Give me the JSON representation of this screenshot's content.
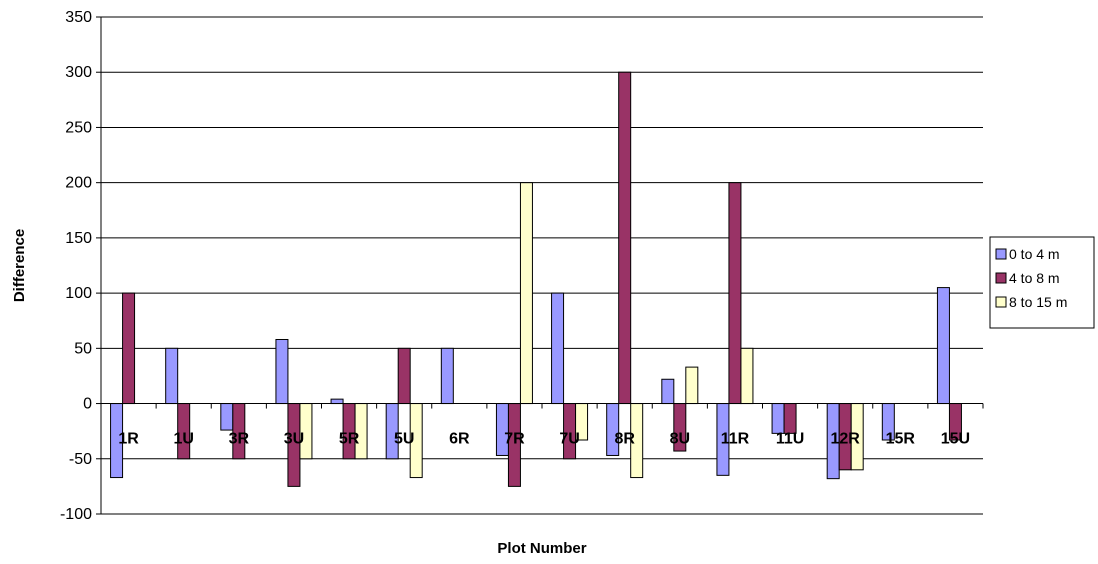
{
  "chart_data": {
    "type": "bar",
    "title": "",
    "xlabel": "Plot Number",
    "ylabel": "Difference",
    "ylim": [
      -100,
      350
    ],
    "yticks": [
      -100,
      -50,
      0,
      50,
      100,
      150,
      200,
      250,
      300,
      350
    ],
    "grid": true,
    "legend_position": "right",
    "categories": [
      "1R",
      "1U",
      "3R",
      "3U",
      "5R",
      "5U",
      "6R",
      "7R",
      "7U",
      "8R",
      "8U",
      "11R",
      "11U",
      "12R",
      "15R",
      "15U"
    ],
    "series": [
      {
        "name": "0 to 4 m",
        "color": "#9999FF",
        "values": [
          -67,
          50,
          -24,
          58,
          4,
          -50,
          50,
          -47,
          100,
          -47,
          22,
          -65,
          -27,
          -68,
          -33,
          105
        ]
      },
      {
        "name": "4 to 8 m",
        "color": "#993366",
        "values": [
          100,
          -50,
          -50,
          -75,
          -50,
          50,
          null,
          -75,
          -50,
          300,
          -43,
          200,
          -27,
          -60,
          null,
          -33
        ]
      },
      {
        "name": "8 to 15 m",
        "color": "#FFFFCC",
        "values": [
          null,
          null,
          null,
          -50,
          -50,
          -67,
          null,
          200,
          -33,
          -67,
          33,
          50,
          null,
          -60,
          null,
          null
        ]
      }
    ]
  }
}
